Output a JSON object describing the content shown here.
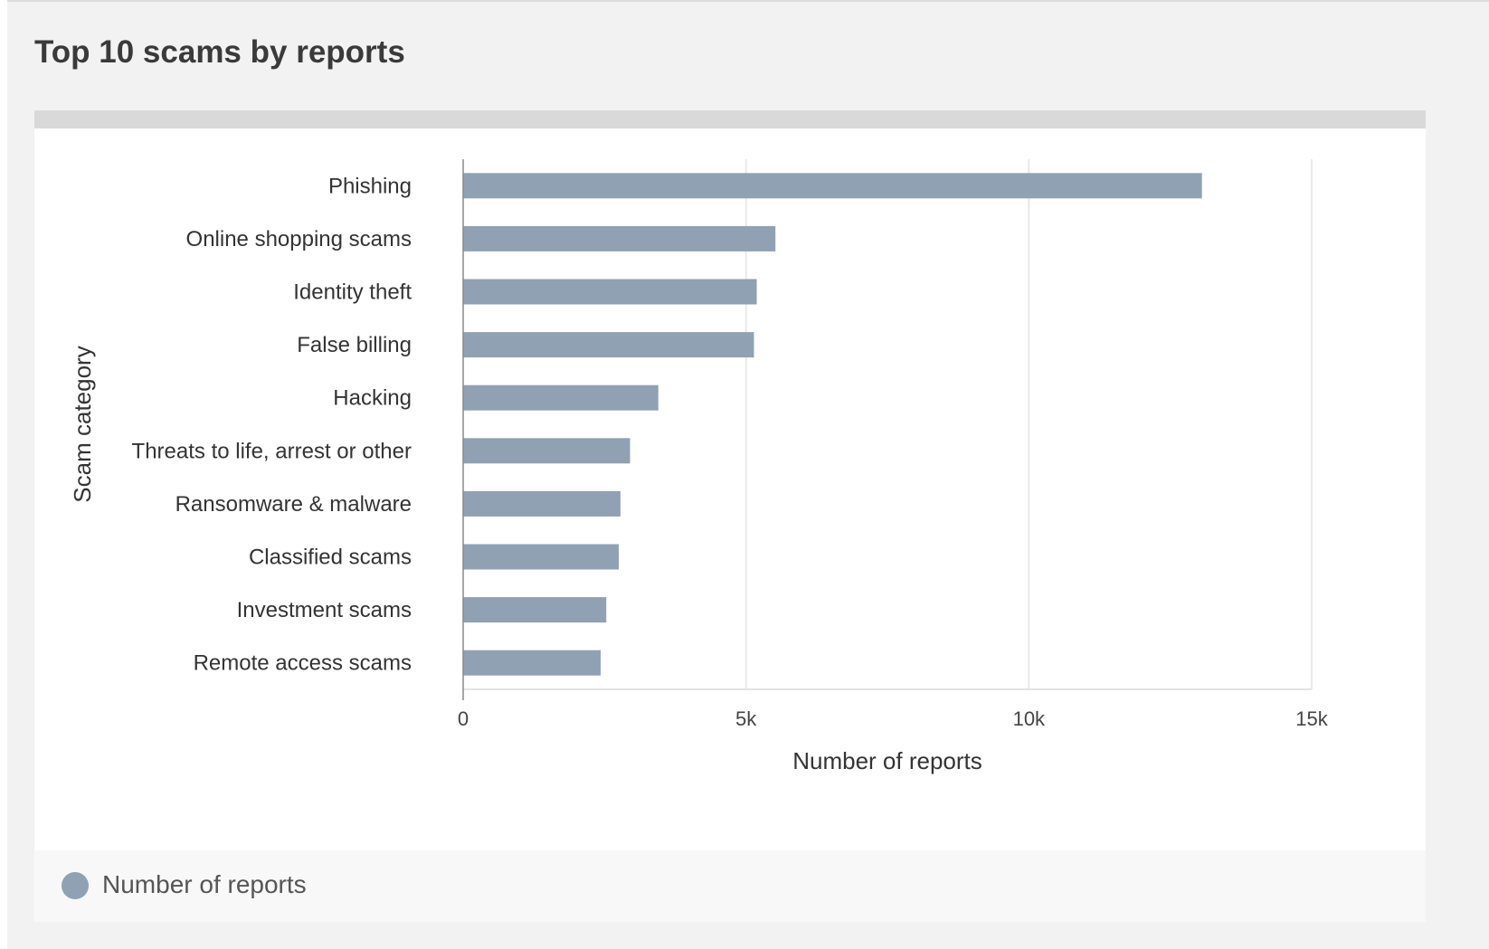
{
  "page": {
    "title": "Top 10 scams by reports"
  },
  "colors": {
    "bar": "#8fa1b3",
    "grid": "#e3e3e3",
    "axis": "#cfcfcf",
    "card_header": "#d9d9d9"
  },
  "legend": {
    "label": "Number of reports"
  },
  "chart_data": {
    "type": "bar",
    "orientation": "horizontal",
    "title": "",
    "xlabel": "Number of reports",
    "ylabel": "Scam category",
    "xlim": [
      0,
      15000
    ],
    "x_ticks": [
      0,
      5000,
      10000,
      15000
    ],
    "x_tick_labels": [
      "0",
      "5k",
      "10k",
      "15k"
    ],
    "grid": true,
    "legend_position": "bottom-left",
    "categories": [
      "Phishing",
      "Online shopping scams",
      "Identity theft",
      "False billing",
      "Hacking",
      "Threats to life, arrest or other",
      "Ransomware & malware",
      "Classified scams",
      "Investment scams",
      "Remote access scams"
    ],
    "series": [
      {
        "name": "Number of reports",
        "values": [
          13060,
          5520,
          5190,
          5140,
          3450,
          2950,
          2780,
          2750,
          2530,
          2430
        ]
      }
    ]
  }
}
